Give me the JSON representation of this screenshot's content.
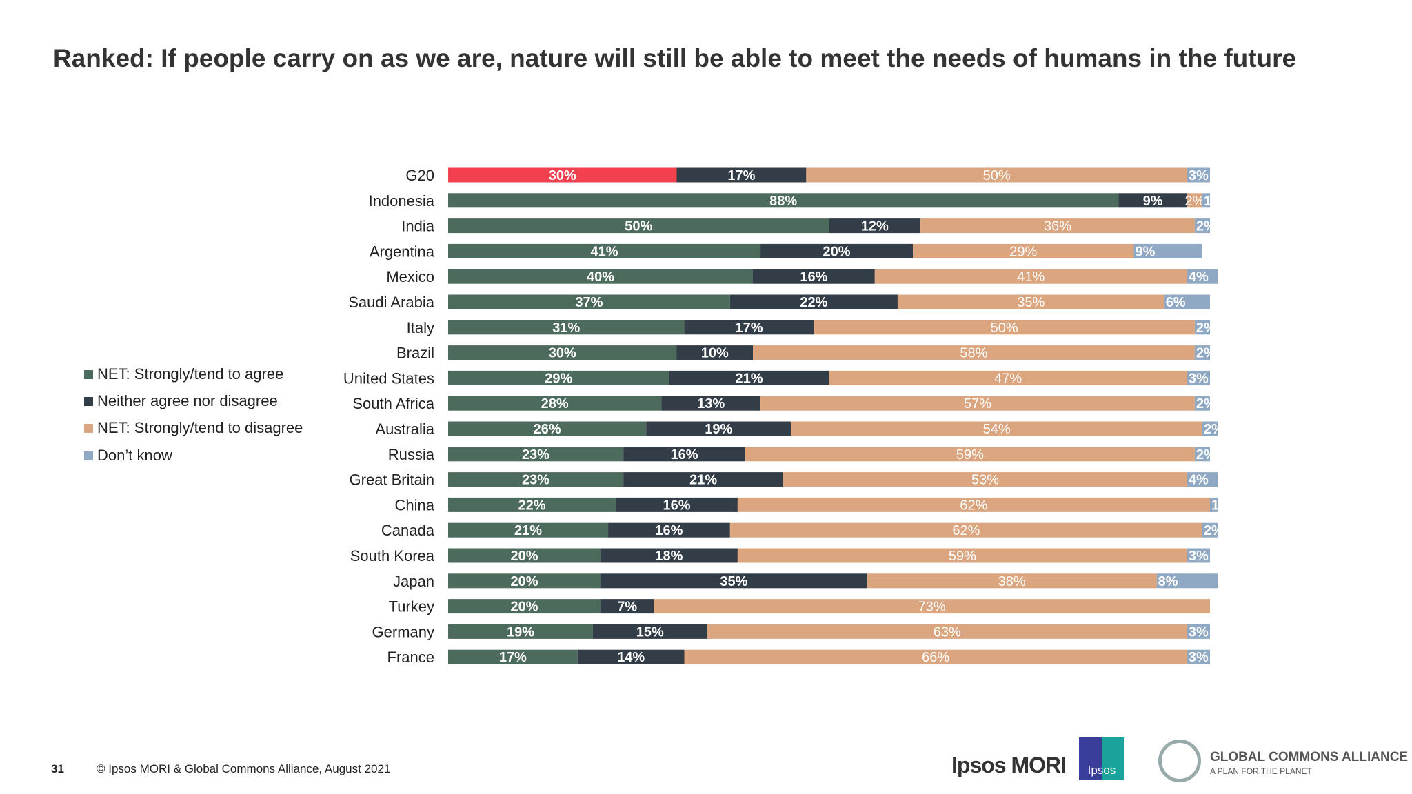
{
  "chart_data": {
    "type": "bar",
    "orientation": "horizontal",
    "stacked": true,
    "title": "Ranked: If people carry on as we are, nature will still be able to meet the needs of humans in the future",
    "categories": [
      "G20",
      "Indonesia",
      "India",
      "Argentina",
      "Mexico",
      "Saudi Arabia",
      "Italy",
      "Brazil",
      "United States",
      "South Africa",
      "Australia",
      "Russia",
      "Great Britain",
      "China",
      "Canada",
      "South Korea",
      "Japan",
      "Turkey",
      "Germany",
      "France"
    ],
    "series": [
      {
        "name": "NET: Strongly/tend to agree",
        "color": "#4d6b5d",
        "values": [
          30,
          88,
          50,
          41,
          40,
          37,
          31,
          30,
          29,
          28,
          26,
          23,
          23,
          22,
          21,
          20,
          20,
          20,
          19,
          17
        ]
      },
      {
        "name": "Neither agree nor disagree",
        "color": "#333d47",
        "values": [
          17,
          9,
          12,
          20,
          16,
          22,
          17,
          10,
          21,
          13,
          19,
          16,
          21,
          16,
          16,
          18,
          35,
          7,
          15,
          14
        ]
      },
      {
        "name": "NET: Strongly/tend to disagree",
        "color": "#dba67f",
        "values": [
          50,
          2,
          36,
          29,
          41,
          35,
          50,
          58,
          47,
          57,
          54,
          59,
          53,
          62,
          62,
          59,
          38,
          73,
          63,
          66
        ]
      },
      {
        "name": "Don’t know",
        "color": "#8fa9c4",
        "values": [
          3,
          1,
          2,
          9,
          4,
          6,
          2,
          2,
          3,
          2,
          2,
          2,
          4,
          1,
          2,
          3,
          8,
          0,
          3,
          3
        ]
      }
    ],
    "highlight": {
      "category": "G20",
      "color": "#f2404f"
    },
    "value_format": "percent",
    "legend_placement": "left",
    "grid": false
  },
  "footer": {
    "page_number": "31",
    "copyright": "© Ipsos MORI & Global Commons Alliance, August 2021"
  },
  "logos": {
    "ipsos_mori": "Ipsos MORI",
    "ipsos_box": "Ipsos",
    "gca_name": "GLOBAL COMMONS ALLIANCE",
    "gca_tagline": "A PLAN FOR THE PLANET"
  }
}
